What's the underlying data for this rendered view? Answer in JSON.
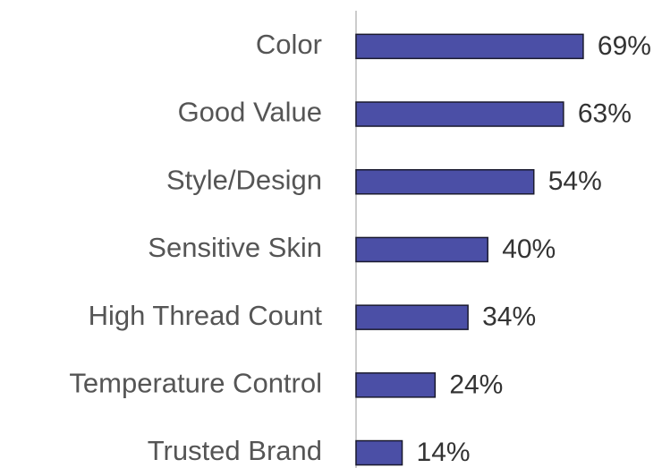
{
  "chart_data": {
    "type": "bar",
    "orientation": "horizontal",
    "categories": [
      "Color",
      "Good Value",
      "Style/Design",
      "Sensitive Skin",
      "High Thread Count",
      "Temperature Control",
      "Trusted Brand"
    ],
    "values": [
      69,
      63,
      54,
      40,
      34,
      24,
      14
    ],
    "value_labels": [
      "69%",
      "63%",
      "54%",
      "40%",
      "34%",
      "24%",
      "14%"
    ],
    "color": "#4b4fa6",
    "xlim": [
      0,
      100
    ]
  }
}
